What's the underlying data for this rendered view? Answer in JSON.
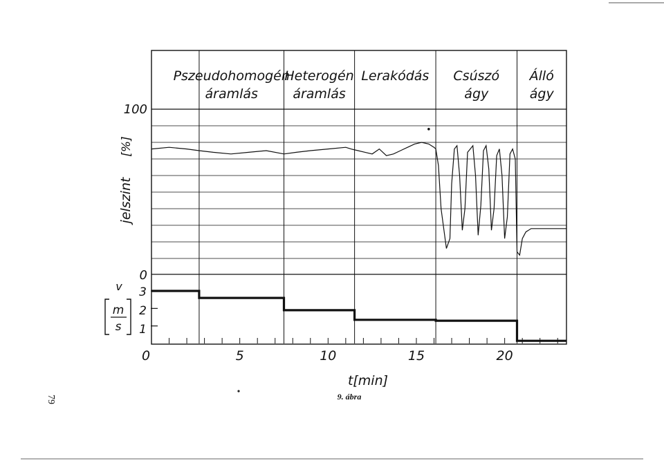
{
  "chart_data": [
    {
      "type": "line",
      "ylabel": "jelszint",
      "yunit": "[%]",
      "x_unit": "t[min]",
      "xlim": [
        0,
        23.5
      ],
      "ylim": [
        0,
        100
      ],
      "y_ticks": [
        "0",
        "100"
      ],
      "regime_boundaries": [
        2.7,
        7.5,
        11.5,
        16.1,
        20.7
      ],
      "regimes": [
        {
          "line1": "Pszeudohomogén",
          "line2": "áramlás"
        },
        {
          "line1": "Heterogén",
          "line2": "áramlás"
        },
        {
          "line1": "Lerakódás",
          "line2": ""
        },
        {
          "line1": "Csúszó",
          "line2": "ágy"
        },
        {
          "line1": "Álló",
          "line2": "ágy"
        }
      ],
      "series": [
        {
          "x": [
            0,
            1,
            2,
            2.7,
            3.5,
            4.5,
            5.5,
            6.5,
            7.5,
            8.2,
            9,
            10,
            11,
            11.3,
            11.7,
            12.1,
            12.5,
            12.9,
            13.3,
            13.7,
            14.1,
            14.5,
            14.9,
            15.3,
            15.7,
            16.0,
            16.1,
            16.25,
            16.4,
            16.7,
            16.9,
            17.0,
            17.15,
            17.3,
            17.45,
            17.6,
            17.75,
            17.9,
            18.05,
            18.2,
            18.35,
            18.5,
            18.65,
            18.8,
            18.95,
            19.1,
            19.25,
            19.4,
            19.55,
            19.7,
            19.85,
            20.0,
            20.15,
            20.3,
            20.45,
            20.6,
            20.7,
            20.85,
            21.0,
            21.2,
            21.5,
            22.0,
            23.0,
            23.5
          ],
          "y": [
            76,
            77,
            76,
            75,
            74,
            73,
            74,
            75,
            73,
            74,
            75,
            76,
            77,
            76,
            75,
            74,
            73,
            76,
            72,
            73,
            75,
            77,
            79,
            80,
            79,
            77,
            76,
            66,
            40,
            16,
            22,
            55,
            76,
            78,
            60,
            27,
            40,
            74,
            76,
            78,
            60,
            24,
            42,
            75,
            78,
            64,
            27,
            40,
            72,
            76,
            60,
            22,
            35,
            73,
            76,
            70,
            14,
            12,
            22,
            26,
            28,
            28,
            28,
            28
          ]
        }
      ],
      "annotations": [
        {
          "x": 15.7,
          "y": 88,
          "text": "•"
        }
      ]
    },
    {
      "type": "line",
      "ylabel": "v",
      "yunit": [
        "m",
        "s"
      ],
      "xlabel": "t[min]",
      "xlim": [
        0,
        23.5
      ],
      "ylim": [
        0,
        3.5
      ],
      "y_ticks": [
        "1",
        "2",
        "3"
      ],
      "x_ticks": [
        "0",
        "5",
        "10",
        "15",
        "20"
      ],
      "x_tick_values": [
        0,
        5,
        10,
        15,
        20
      ],
      "series": [
        {
          "x": [
            0,
            2.7,
            2.7,
            7.5,
            7.5,
            11.5,
            11.5,
            16.1,
            16.1,
            20.7,
            20.7,
            23.5
          ],
          "y": [
            3.0,
            3.0,
            2.6,
            2.6,
            1.9,
            1.9,
            1.35,
            1.35,
            1.3,
            1.3,
            0.15,
            0.15
          ]
        }
      ]
    }
  ],
  "caption": "9. ábra",
  "page_number": "79"
}
